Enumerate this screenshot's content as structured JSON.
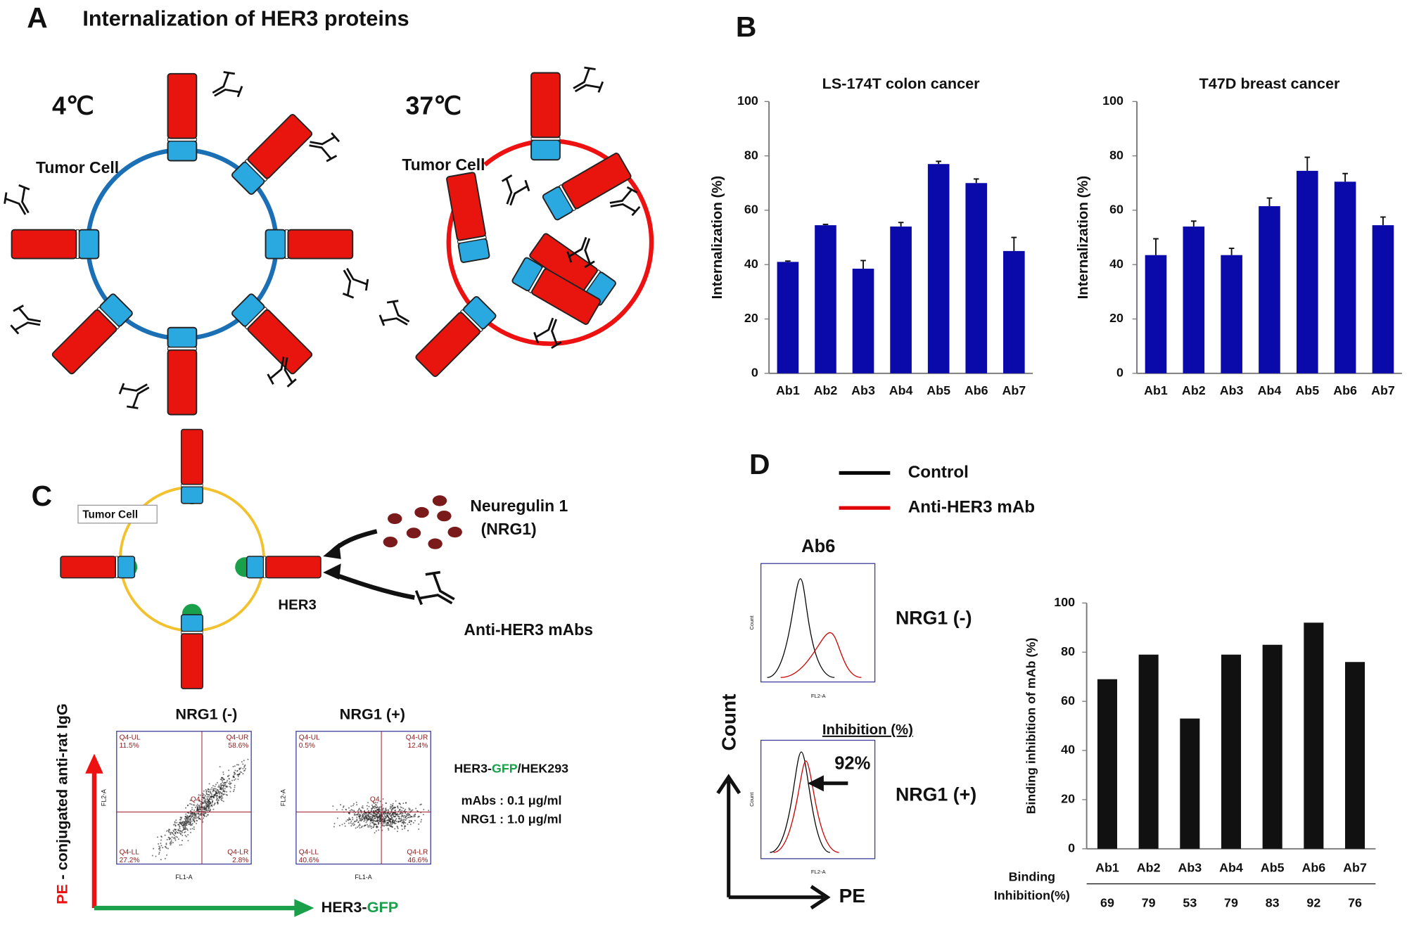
{
  "panel_a": {
    "label": "A",
    "title": "Internalization of HER3 proteins",
    "conditions": [
      {
        "temperature": "4℃",
        "cell_label": "Tumor Cell"
      },
      {
        "temperature": "37℃",
        "cell_label": "Tumor Cell"
      }
    ]
  },
  "panel_b": {
    "label": "B"
  },
  "panel_c": {
    "label": "C",
    "cell_label": "Tumor Cell",
    "ligand": [
      "Neuregulin 1",
      "(NRG1)"
    ],
    "receptor": "HER3",
    "antibody": "Anti-HER3 mAbs",
    "flow_plots": [
      {
        "title": "NRG1 (-)",
        "center": "Q4",
        "x_label": "FL1-A",
        "y_label": "FL2-A",
        "quadrants": [
          {
            "name": "Q4-UL",
            "percent": "11.5%"
          },
          {
            "name": "Q4-UR",
            "percent": "58.6%"
          },
          {
            "name": "Q4-LL",
            "percent": "27.2%"
          },
          {
            "name": "Q4-LR",
            "percent": "2.8%"
          }
        ]
      },
      {
        "title": "NRG1 (+)",
        "center": "Q4",
        "x_label": "FL1-A",
        "y_label": "FL2-A",
        "quadrants": [
          {
            "name": "Q4-UL",
            "percent": "0.5%"
          },
          {
            "name": "Q4-UR",
            "percent": "12.4%"
          },
          {
            "name": "Q4-LL",
            "percent": "40.6%"
          },
          {
            "name": "Q4-LR",
            "percent": "46.6%"
          }
        ]
      }
    ],
    "cell_line": [
      "HER3-",
      "GFP",
      "/HEK293"
    ],
    "conditions": [
      "mAbs :  0.1 μg/ml",
      "NRG1 :  1.0 μg/ml"
    ],
    "y_axis": [
      "PE",
      "- conjugated anti-rat IgG"
    ],
    "x_axis": [
      "HER3-",
      "GFP"
    ]
  },
  "panel_d": {
    "label": "D",
    "legend": [
      {
        "name": "Control",
        "color": "#000000"
      },
      {
        "name": "Anti-HER3 mAb",
        "color": "#e00000"
      }
    ],
    "antibody": "Ab6",
    "conditions": [
      "NRG1 (-)",
      "NRG1 (+)"
    ],
    "inhibition_heading": "Inhibition (%)",
    "inhibition_value": "92%",
    "histogram_y_label": "Count",
    "histogram_x_label": "FL2-A",
    "y_axis": "Count",
    "x_axis": "PE"
  },
  "chart_data": [
    {
      "type": "bar",
      "title": "LS-174T colon cancer",
      "y_label": "Internalization (%)",
      "categories": [
        "Ab1",
        "Ab2",
        "Ab3",
        "Ab4",
        "Ab5",
        "Ab6",
        "Ab7"
      ],
      "values": [
        41,
        54.5,
        38.5,
        54,
        77,
        70,
        45
      ],
      "errors": [
        0.3,
        0.3,
        3,
        1.5,
        1,
        1.5,
        5
      ],
      "color": "#0a0aaa",
      "ylim": [
        0,
        100
      ],
      "yticks": [
        0,
        20,
        40,
        60,
        80,
        100
      ]
    },
    {
      "type": "bar",
      "title": "T47D breast cancer",
      "y_label": "Internalization (%)",
      "categories": [
        "Ab1",
        "Ab2",
        "Ab3",
        "Ab4",
        "Ab5",
        "Ab6",
        "Ab7"
      ],
      "values": [
        43.5,
        54,
        43.5,
        61.5,
        74.5,
        70.5,
        54.5
      ],
      "errors": [
        6,
        2,
        2.5,
        3,
        5,
        3,
        3
      ],
      "color": "#0a0aaa",
      "ylim": [
        0,
        100
      ],
      "yticks": [
        0,
        20,
        40,
        60,
        80,
        100
      ]
    },
    {
      "type": "bar",
      "y_label": "Binding  inhibition of mAb (%)",
      "categories": [
        "Ab1",
        "Ab2",
        "Ab3",
        "Ab4",
        "Ab5",
        "Ab6",
        "Ab7"
      ],
      "values": [
        69,
        79,
        53,
        79,
        83,
        92,
        76
      ],
      "color": "#111111",
      "ylim": [
        0,
        100
      ],
      "yticks": [
        0,
        20,
        40,
        60,
        80,
        100
      ],
      "table_row_label": [
        "Binding",
        "Inhibition(%)"
      ]
    }
  ]
}
